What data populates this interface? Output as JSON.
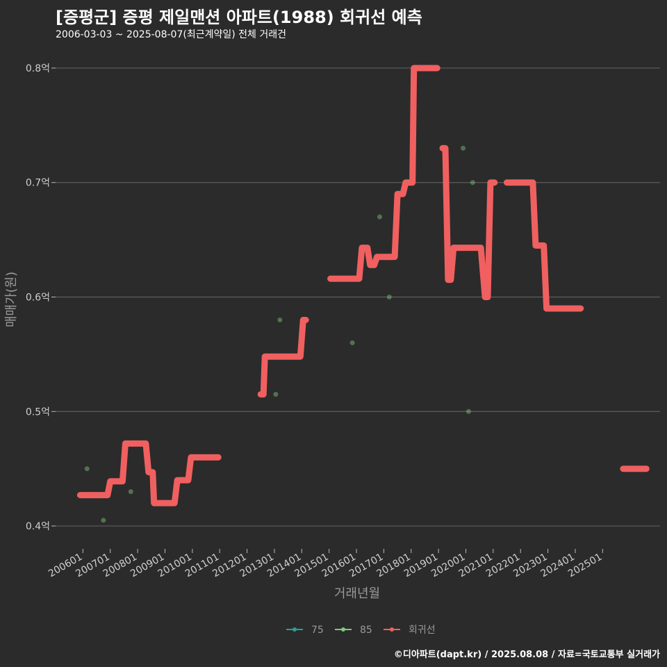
{
  "chart_data": {
    "type": "line",
    "title": "[증평군] 증평 제일맨션 아파트(1988) 회귀선 예측",
    "subtitle": "2006-03-03 ~ 2025-08-07(최근계약일) 전체 거래건",
    "xlabel": "거래년월",
    "ylabel": "매매가(원)",
    "ylim": [
      0.38,
      0.82
    ],
    "xlim": [
      2005.0,
      2027.1
    ],
    "y_ticks": [
      {
        "value": 0.4,
        "label": "0.4억"
      },
      {
        "value": 0.5,
        "label": "0.5억"
      },
      {
        "value": 0.6,
        "label": "0.6억"
      },
      {
        "value": 0.7,
        "label": "0.7억"
      },
      {
        "value": 0.8,
        "label": "0.8억"
      }
    ],
    "x_ticks": [
      {
        "value": 2006.0,
        "label": "200601"
      },
      {
        "value": 2007.0,
        "label": "200701"
      },
      {
        "value": 2008.0,
        "label": "200801"
      },
      {
        "value": 2009.0,
        "label": "200901"
      },
      {
        "value": 2010.0,
        "label": "201001"
      },
      {
        "value": 2011.0,
        "label": "201101"
      },
      {
        "value": 2012.0,
        "label": "201201"
      },
      {
        "value": 2013.0,
        "label": "201301"
      },
      {
        "value": 2014.0,
        "label": "201401"
      },
      {
        "value": 2015.0,
        "label": "201501"
      },
      {
        "value": 2016.0,
        "label": "201601"
      },
      {
        "value": 2017.0,
        "label": "201701"
      },
      {
        "value": 2018.0,
        "label": "201801"
      },
      {
        "value": 2019.0,
        "label": "201901"
      },
      {
        "value": 2020.0,
        "label": "202001"
      },
      {
        "value": 2021.0,
        "label": "202101"
      },
      {
        "value": 2022.0,
        "label": "202201"
      },
      {
        "value": 2023.0,
        "label": "202301"
      },
      {
        "value": 2024.0,
        "label": "202401"
      },
      {
        "value": 2025.0,
        "label": "202501"
      }
    ],
    "series": [
      {
        "name": "75",
        "kind": "scatter",
        "color": "#2a9d9f",
        "points": []
      },
      {
        "name": "85",
        "kind": "scatter",
        "color": "#7fc97f",
        "points": [
          [
            2006.15,
            0.45
          ],
          [
            2006.75,
            0.405
          ],
          [
            2007.75,
            0.43
          ],
          [
            2013.05,
            0.515
          ],
          [
            2013.2,
            0.58
          ],
          [
            2015.85,
            0.56
          ],
          [
            2016.85,
            0.67
          ],
          [
            2017.2,
            0.6
          ],
          [
            2019.9,
            0.73
          ],
          [
            2020.1,
            0.5
          ],
          [
            2020.25,
            0.7
          ]
        ]
      },
      {
        "name": "회귀선",
        "kind": "line",
        "color": "#f06060",
        "segments": [
          [
            [
              2005.9,
              0.427
            ],
            [
              2006.9,
              0.427
            ],
            [
              2007.0,
              0.439
            ],
            [
              2007.45,
              0.439
            ],
            [
              2007.55,
              0.472
            ],
            [
              2008.3,
              0.472
            ],
            [
              2008.4,
              0.447
            ],
            [
              2008.55,
              0.447
            ],
            [
              2008.6,
              0.42
            ],
            [
              2009.35,
              0.42
            ],
            [
              2009.45,
              0.44
            ],
            [
              2009.85,
              0.44
            ],
            [
              2009.95,
              0.46
            ],
            [
              2010.95,
              0.46
            ]
          ],
          [
            [
              2012.5,
              0.515
            ],
            [
              2012.6,
              0.515
            ],
            [
              2012.65,
              0.548
            ],
            [
              2013.95,
              0.548
            ],
            [
              2014.05,
              0.58
            ],
            [
              2014.15,
              0.58
            ]
          ],
          [
            [
              2015.05,
              0.616
            ],
            [
              2016.1,
              0.616
            ],
            [
              2016.2,
              0.643
            ],
            [
              2016.4,
              0.643
            ],
            [
              2016.5,
              0.628
            ],
            [
              2016.65,
              0.628
            ],
            [
              2016.75,
              0.635
            ],
            [
              2017.4,
              0.635
            ],
            [
              2017.5,
              0.69
            ],
            [
              2017.7,
              0.69
            ],
            [
              2017.8,
              0.7
            ],
            [
              2018.05,
              0.7
            ],
            [
              2018.1,
              0.8
            ],
            [
              2018.95,
              0.8
            ]
          ],
          [
            [
              2019.15,
              0.73
            ],
            [
              2019.25,
              0.73
            ],
            [
              2019.35,
              0.615
            ],
            [
              2019.45,
              0.615
            ],
            [
              2019.55,
              0.643
            ],
            [
              2020.55,
              0.643
            ],
            [
              2020.7,
              0.6
            ],
            [
              2020.8,
              0.6
            ],
            [
              2020.9,
              0.7
            ],
            [
              2021.05,
              0.7
            ]
          ],
          [
            [
              2021.5,
              0.7
            ],
            [
              2022.45,
              0.7
            ],
            [
              2022.55,
              0.645
            ],
            [
              2022.85,
              0.645
            ],
            [
              2022.95,
              0.59
            ],
            [
              2024.2,
              0.59
            ]
          ],
          [
            [
              2025.75,
              0.45
            ],
            [
              2026.6,
              0.45
            ]
          ]
        ]
      }
    ]
  },
  "caption": "©디아파트(dapt.kr) / 2025.08.08 / 자료=국토교통부 실거래가",
  "colors": {
    "background": "#2b2b2b",
    "grid": "#5e5e5e",
    "text": "#dddddd"
  }
}
